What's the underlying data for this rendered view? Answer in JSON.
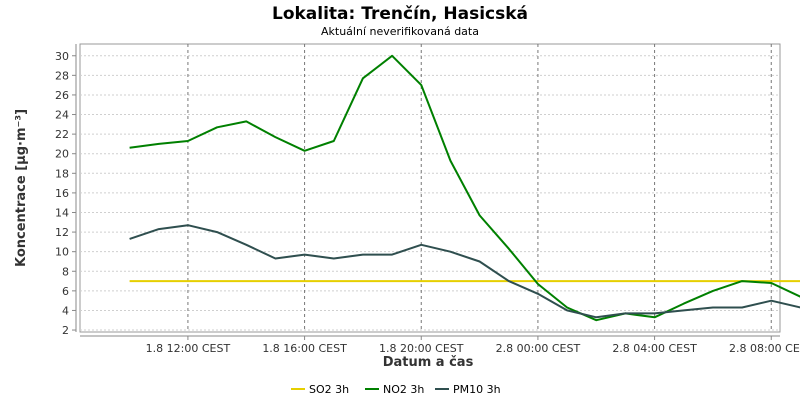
{
  "chart_data": {
    "type": "line",
    "title": "Lokalita: Trenčín, Hasicská",
    "subtitle": "Aktuální neverifikovaná data",
    "xlabel": "Datum a čas",
    "ylabel": "Koncentrace [µg·m⁻³]",
    "ylim": [
      1.8,
      31.2
    ],
    "yticks": [
      2,
      4,
      6,
      8,
      10,
      12,
      14,
      16,
      18,
      20,
      22,
      24,
      26,
      28,
      30
    ],
    "xlim": [
      8.3,
      32.3
    ],
    "xtick_values": [
      12,
      16,
      20,
      24,
      28,
      32
    ],
    "xtick_labels": [
      "1.8 12:00 CEST",
      "1.8 16:00 CEST",
      "1.8 20:00 CEST",
      "2.8 00:00 CEST",
      "2.8 04:00 CEST",
      "2.8 08:00 CEST"
    ],
    "x": [
      10,
      11,
      12,
      13,
      14,
      15,
      16,
      17,
      18,
      19,
      20,
      21,
      22,
      23,
      24,
      25,
      26,
      27,
      28,
      29,
      30,
      31,
      32,
      33
    ],
    "grid": true,
    "legend_position": "bottom",
    "series": [
      {
        "name": "SO2 3h",
        "color": "#e6cf00",
        "x": [
          10,
          33
        ],
        "values": [
          7,
          7
        ]
      },
      {
        "name": "NO2 3h",
        "color": "#008000",
        "values": [
          20.6,
          21.0,
          21.3,
          22.7,
          23.3,
          21.7,
          20.3,
          21.3,
          27.7,
          30.0,
          27.0,
          19.3,
          13.7,
          10.3,
          6.7,
          4.3,
          3.0,
          3.7,
          3.3,
          4.7,
          6.0,
          7.0,
          6.8,
          5.4
        ]
      },
      {
        "name": "PM10 3h",
        "color": "#2f4f4f",
        "values": [
          11.3,
          12.3,
          12.7,
          12.0,
          10.7,
          9.3,
          9.7,
          9.3,
          9.7,
          9.7,
          10.7,
          10.0,
          9.0,
          7.0,
          5.7,
          4.0,
          3.3,
          3.7,
          3.7,
          4.0,
          4.3,
          4.3,
          5.0,
          4.3
        ]
      }
    ]
  }
}
